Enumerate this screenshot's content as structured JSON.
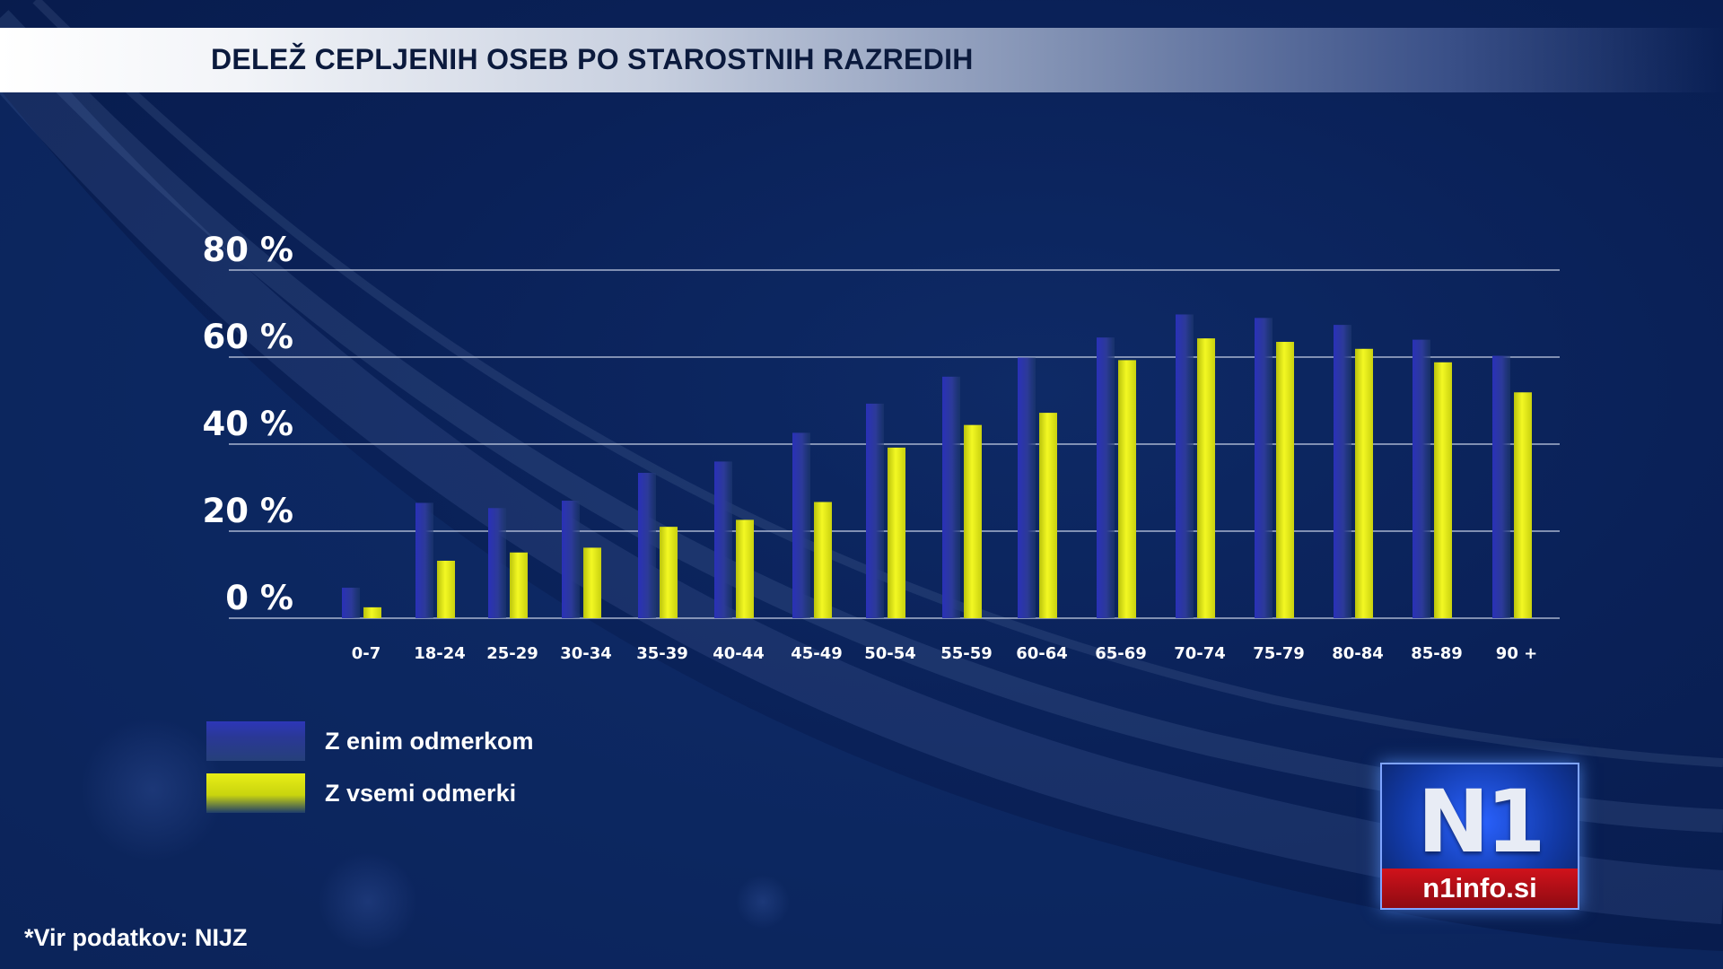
{
  "title": "DELEŽ CEPLJENIH OSEB PO STAROSTNIH RAZREDIH",
  "source": "*Vir podatkov:  NIJZ",
  "logo": {
    "mark": "N1",
    "site": "n1info.si"
  },
  "colors": {
    "background": "#0a2158",
    "series_one_dose": "#2d37b8",
    "series_full": "#e3ea12"
  },
  "chart_data": {
    "type": "bar",
    "title": "DELEŽ CEPLJENIH OSEB PO STAROSTNIH RAZREDIH",
    "xlabel": "",
    "ylabel": "",
    "ylim": [
      0,
      80
    ],
    "y_ticks": [
      "0 %",
      "20 %",
      "40 %",
      "60 %",
      "80 %"
    ],
    "y_tick_values": [
      0,
      20,
      40,
      60,
      80
    ],
    "grid": true,
    "legend": "bottom-left",
    "categories": [
      "0-7",
      "18-24",
      "25-29",
      "30-34",
      "35-39",
      "40-44",
      "45-49",
      "50-54",
      "55-59",
      "60-64",
      "65-69",
      "70-74",
      "75-79",
      "80-84",
      "85-89",
      "90 +"
    ],
    "series": [
      {
        "name": "Z enim odmerkom",
        "values": [
          7,
          26.5,
          25.3,
          27,
          33.4,
          36,
          42.6,
          49.3,
          55.5,
          59.9,
          64.5,
          69.8,
          69,
          67.4,
          64,
          60.3
        ]
      },
      {
        "name": "Z vsemi odmerki",
        "values": [
          2.5,
          13.2,
          15.1,
          16.2,
          21,
          22.6,
          26.7,
          39.2,
          44.4,
          47.2,
          59.3,
          64.3,
          63.5,
          61.9,
          58.8,
          51.9
        ]
      }
    ]
  }
}
